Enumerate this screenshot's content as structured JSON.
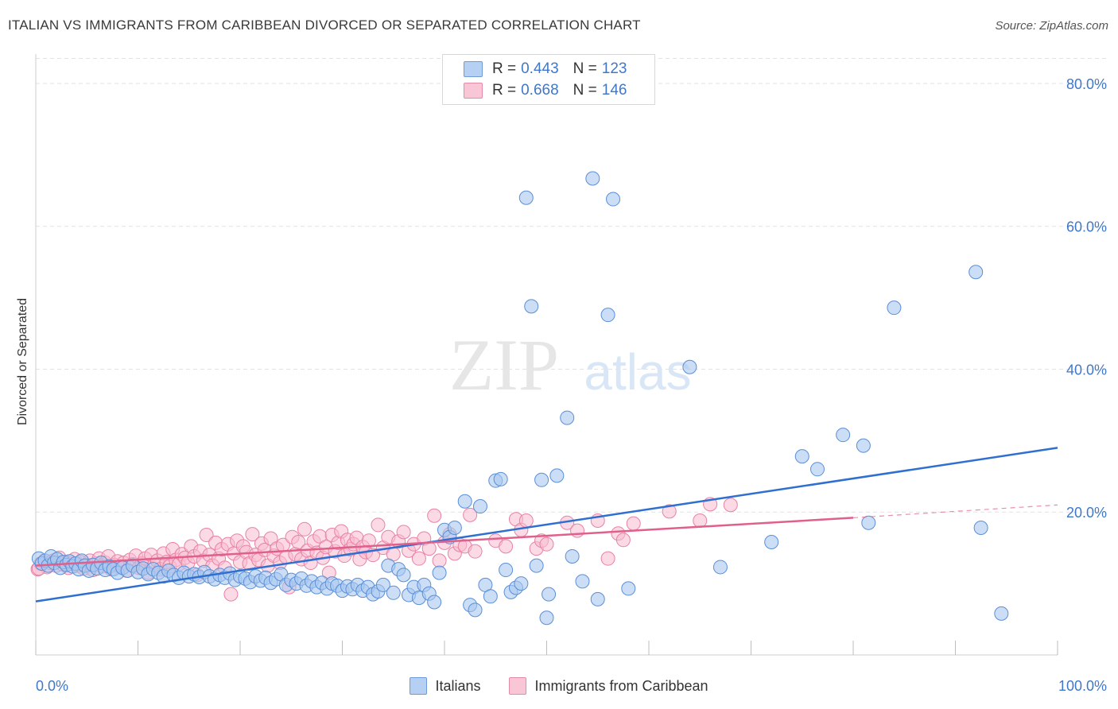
{
  "header": {
    "title": "ITALIAN VS IMMIGRANTS FROM CARIBBEAN DIVORCED OR SEPARATED CORRELATION CHART",
    "source": "Source: ZipAtlas.com"
  },
  "legend": {
    "rows": [
      {
        "r_label": "R =",
        "r_value": "0.443",
        "n_label": "N =",
        "n_value": "123"
      },
      {
        "r_label": "R =",
        "r_value": "0.668",
        "n_label": "N =",
        "n_value": "146"
      }
    ]
  },
  "bottom_legend": {
    "items": [
      "Italians",
      "Immigrants from Caribbean"
    ]
  },
  "watermark": {
    "part1": "ZIP",
    "part2": "atlas"
  },
  "colors": {
    "blue_fill": "#a8c8f0",
    "blue_stroke": "#5a8fd8",
    "blue_line": "#2f6fd0",
    "pink_fill": "#f8bcd0",
    "pink_stroke": "#e882a4",
    "pink_line": "#e0608c",
    "tick_text": "#3f78c8",
    "grid": "#e2e2e2"
  },
  "chart_data": {
    "type": "scatter",
    "title": "ITALIAN VS IMMIGRANTS FROM CARIBBEAN DIVORCED OR SEPARATED CORRELATION CHART",
    "xlabel": "",
    "ylabel": "Divorced or Separated",
    "xlim": [
      0,
      100
    ],
    "ylim": [
      0,
      85
    ],
    "x_tick_labels": [
      "0.0%",
      "100.0%"
    ],
    "y_ticks": [
      20,
      40,
      60,
      80
    ],
    "y_tick_labels": [
      "20.0%",
      "40.0%",
      "60.0%",
      "80.0%"
    ],
    "grid": true,
    "legend_placement": "top-center",
    "series": [
      {
        "name": "Italians",
        "color": "#5a8fd8",
        "trend": {
          "x": [
            0,
            100
          ],
          "y": [
            7.5,
            29
          ]
        },
        "points": [
          [
            0.3,
            13.5
          ],
          [
            0.6,
            12.8
          ],
          [
            0.9,
            13.2
          ],
          [
            1.2,
            12.5
          ],
          [
            1.5,
            13.8
          ],
          [
            1.8,
            12.9
          ],
          [
            2.1,
            13.4
          ],
          [
            2.4,
            12.2
          ],
          [
            2.7,
            13.0
          ],
          [
            3.0,
            12.6
          ],
          [
            3.3,
            13.1
          ],
          [
            3.6,
            12.4
          ],
          [
            3.9,
            12.8
          ],
          [
            4.2,
            12.0
          ],
          [
            4.5,
            13.2
          ],
          [
            4.8,
            12.5
          ],
          [
            5.2,
            11.8
          ],
          [
            5.6,
            12.6
          ],
          [
            6.0,
            12.1
          ],
          [
            6.4,
            12.9
          ],
          [
            6.8,
            11.9
          ],
          [
            7.2,
            12.4
          ],
          [
            7.6,
            12.0
          ],
          [
            8.0,
            11.5
          ],
          [
            8.5,
            12.2
          ],
          [
            9.0,
            11.8
          ],
          [
            9.5,
            12.5
          ],
          [
            10.0,
            11.6
          ],
          [
            10.5,
            12.1
          ],
          [
            11.0,
            11.3
          ],
          [
            11.5,
            12.0
          ],
          [
            12.0,
            11.5
          ],
          [
            12.5,
            11.0
          ],
          [
            13.0,
            11.8
          ],
          [
            13.5,
            11.2
          ],
          [
            14.0,
            10.8
          ],
          [
            14.5,
            11.5
          ],
          [
            15.0,
            11.0
          ],
          [
            15.5,
            11.3
          ],
          [
            16.0,
            10.9
          ],
          [
            16.5,
            11.6
          ],
          [
            17.0,
            11.0
          ],
          [
            17.5,
            10.6
          ],
          [
            18.0,
            11.2
          ],
          [
            18.5,
            10.8
          ],
          [
            19.0,
            11.4
          ],
          [
            19.5,
            10.5
          ],
          [
            20.0,
            11.0
          ],
          [
            20.5,
            10.7
          ],
          [
            21.0,
            10.2
          ],
          [
            21.5,
            11.0
          ],
          [
            22.0,
            10.4
          ],
          [
            22.5,
            10.8
          ],
          [
            23.0,
            10.1
          ],
          [
            23.5,
            10.6
          ],
          [
            24.0,
            11.3
          ],
          [
            24.5,
            9.8
          ],
          [
            25.0,
            10.5
          ],
          [
            25.5,
            10.0
          ],
          [
            26.0,
            10.7
          ],
          [
            26.5,
            9.7
          ],
          [
            27.0,
            10.3
          ],
          [
            27.5,
            9.5
          ],
          [
            28.0,
            10.1
          ],
          [
            28.5,
            9.3
          ],
          [
            29.0,
            10.0
          ],
          [
            29.5,
            9.7
          ],
          [
            30.0,
            9.0
          ],
          [
            30.5,
            9.6
          ],
          [
            31.0,
            9.2
          ],
          [
            31.5,
            9.8
          ],
          [
            32.0,
            9.0
          ],
          [
            32.5,
            9.5
          ],
          [
            33.0,
            8.5
          ],
          [
            33.5,
            8.9
          ],
          [
            34.0,
            9.8
          ],
          [
            34.5,
            12.5
          ],
          [
            35.0,
            8.7
          ],
          [
            35.5,
            12.0
          ],
          [
            36.0,
            11.2
          ],
          [
            36.5,
            8.4
          ],
          [
            37.0,
            9.5
          ],
          [
            37.5,
            8.0
          ],
          [
            38.0,
            9.8
          ],
          [
            38.5,
            8.6
          ],
          [
            39.0,
            7.4
          ],
          [
            39.5,
            11.5
          ],
          [
            40.0,
            17.5
          ],
          [
            40.5,
            16.5
          ],
          [
            41.0,
            17.8
          ],
          [
            42.0,
            21.5
          ],
          [
            42.5,
            7.0
          ],
          [
            43.0,
            6.3
          ],
          [
            43.5,
            20.8
          ],
          [
            44.0,
            9.8
          ],
          [
            44.5,
            8.2
          ],
          [
            45.0,
            24.4
          ],
          [
            45.5,
            24.6
          ],
          [
            46.0,
            11.9
          ],
          [
            46.5,
            8.8
          ],
          [
            47.0,
            9.4
          ],
          [
            47.5,
            10.0
          ],
          [
            48.0,
            64.0
          ],
          [
            48.5,
            48.8
          ],
          [
            49.0,
            12.5
          ],
          [
            49.5,
            24.5
          ],
          [
            50.0,
            5.2
          ],
          [
            50.2,
            8.5
          ],
          [
            51.0,
            25.1
          ],
          [
            52.0,
            33.2
          ],
          [
            52.5,
            13.8
          ],
          [
            53.5,
            10.3
          ],
          [
            54.5,
            66.7
          ],
          [
            55.0,
            7.8
          ],
          [
            56.0,
            47.6
          ],
          [
            56.5,
            63.8
          ],
          [
            58.0,
            9.3
          ],
          [
            64.0,
            40.3
          ],
          [
            67.0,
            12.3
          ],
          [
            72.0,
            15.8
          ],
          [
            75.0,
            27.8
          ],
          [
            76.5,
            26.0
          ],
          [
            79.0,
            30.8
          ],
          [
            81.0,
            29.3
          ],
          [
            81.5,
            18.5
          ],
          [
            84.0,
            48.6
          ],
          [
            92.0,
            53.6
          ],
          [
            92.5,
            17.8
          ],
          [
            94.5,
            5.8
          ]
        ]
      },
      {
        "name": "Immigrants from Caribbean",
        "color": "#e882a4",
        "trend": {
          "x": [
            0,
            80
          ],
          "y": [
            12.5,
            19.2
          ]
        },
        "trend_dashed": {
          "x": [
            80,
            100
          ],
          "y": [
            19.2,
            21.0
          ]
        },
        "points": [
          [
            0.2,
            12.0
          ],
          [
            0.5,
            12.8
          ],
          [
            0.8,
            13.0
          ],
          [
            1.1,
            12.3
          ],
          [
            1.4,
            12.9
          ],
          [
            1.7,
            13.2
          ],
          [
            2.0,
            12.5
          ],
          [
            2.3,
            13.6
          ],
          [
            2.6,
            12.7
          ],
          [
            2.9,
            13.0
          ],
          [
            3.2,
            12.2
          ],
          [
            3.5,
            12.8
          ],
          [
            3.8,
            13.4
          ],
          [
            4.1,
            12.5
          ],
          [
            4.4,
            13.0
          ],
          [
            4.7,
            12.1
          ],
          [
            5.0,
            12.6
          ],
          [
            5.3,
            13.2
          ],
          [
            5.6,
            11.9
          ],
          [
            5.9,
            12.8
          ],
          [
            6.2,
            13.5
          ],
          [
            6.5,
            12.4
          ],
          [
            6.8,
            12.9
          ],
          [
            7.1,
            13.8
          ],
          [
            7.4,
            12.0
          ],
          [
            7.7,
            12.6
          ],
          [
            8.0,
            13.1
          ],
          [
            8.3,
            12.4
          ],
          [
            8.6,
            12.9
          ],
          [
            8.9,
            11.8
          ],
          [
            9.2,
            13.3
          ],
          [
            9.5,
            12.7
          ],
          [
            9.8,
            13.9
          ],
          [
            10.1,
            12.2
          ],
          [
            10.4,
            12.8
          ],
          [
            10.7,
            13.5
          ],
          [
            11.0,
            11.5
          ],
          [
            11.3,
            14.0
          ],
          [
            11.6,
            12.6
          ],
          [
            11.9,
            13.2
          ],
          [
            12.2,
            12.0
          ],
          [
            12.5,
            14.2
          ],
          [
            12.8,
            13.0
          ],
          [
            13.1,
            12.4
          ],
          [
            13.4,
            14.8
          ],
          [
            13.7,
            13.3
          ],
          [
            14.0,
            12.7
          ],
          [
            14.3,
            14.1
          ],
          [
            14.6,
            13.6
          ],
          [
            14.9,
            12.9
          ],
          [
            15.2,
            15.2
          ],
          [
            15.5,
            13.8
          ],
          [
            15.8,
            11.2
          ],
          [
            16.1,
            14.5
          ],
          [
            16.4,
            13.2
          ],
          [
            16.7,
            16.8
          ],
          [
            17.0,
            14.0
          ],
          [
            17.3,
            12.5
          ],
          [
            17.6,
            15.7
          ],
          [
            17.9,
            13.5
          ],
          [
            18.2,
            14.8
          ],
          [
            18.5,
            12.2
          ],
          [
            18.8,
            15.5
          ],
          [
            19.1,
            8.5
          ],
          [
            19.4,
            14.2
          ],
          [
            19.7,
            16.0
          ],
          [
            20.0,
            13.0
          ],
          [
            20.3,
            15.2
          ],
          [
            20.6,
            14.4
          ],
          [
            20.9,
            12.8
          ],
          [
            21.2,
            16.9
          ],
          [
            21.5,
            14.0
          ],
          [
            21.8,
            13.3
          ],
          [
            22.1,
            15.6
          ],
          [
            22.4,
            14.7
          ],
          [
            22.7,
            12.5
          ],
          [
            23.0,
            16.3
          ],
          [
            23.3,
            13.9
          ],
          [
            23.6,
            14.9
          ],
          [
            23.9,
            12.9
          ],
          [
            24.2,
            15.4
          ],
          [
            24.5,
            13.7
          ],
          [
            24.8,
            9.5
          ],
          [
            25.1,
            16.5
          ],
          [
            25.4,
            14.1
          ],
          [
            25.7,
            15.8
          ],
          [
            26.0,
            13.4
          ],
          [
            26.3,
            17.6
          ],
          [
            26.6,
            14.6
          ],
          [
            26.9,
            12.9
          ],
          [
            27.2,
            15.9
          ],
          [
            27.5,
            14.3
          ],
          [
            27.8,
            16.6
          ],
          [
            28.1,
            13.6
          ],
          [
            28.4,
            15.1
          ],
          [
            28.7,
            11.5
          ],
          [
            29.0,
            16.8
          ],
          [
            29.3,
            14.5
          ],
          [
            29.6,
            15.7
          ],
          [
            29.9,
            17.3
          ],
          [
            30.2,
            13.9
          ],
          [
            30.5,
            16.1
          ],
          [
            30.8,
            14.8
          ],
          [
            31.1,
            15.5
          ],
          [
            31.4,
            16.4
          ],
          [
            31.7,
            13.4
          ],
          [
            32.0,
            15.1
          ],
          [
            32.3,
            14.4
          ],
          [
            32.6,
            16.0
          ],
          [
            33.0,
            14.0
          ],
          [
            33.5,
            18.2
          ],
          [
            34.0,
            15.0
          ],
          [
            34.5,
            16.5
          ],
          [
            35.0,
            14.1
          ],
          [
            35.5,
            15.9
          ],
          [
            36.0,
            17.2
          ],
          [
            36.5,
            14.6
          ],
          [
            37.0,
            15.5
          ],
          [
            37.5,
            13.5
          ],
          [
            38.0,
            16.3
          ],
          [
            38.5,
            14.9
          ],
          [
            39.0,
            19.5
          ],
          [
            39.5,
            13.2
          ],
          [
            40.0,
            15.7
          ],
          [
            40.5,
            16.9
          ],
          [
            41.0,
            14.2
          ],
          [
            41.5,
            15.4
          ],
          [
            42.0,
            15.2
          ],
          [
            42.5,
            19.6
          ],
          [
            43.0,
            14.5
          ],
          [
            45.0,
            16.0
          ],
          [
            46.0,
            15.2
          ],
          [
            47.0,
            19.0
          ],
          [
            47.5,
            17.5
          ],
          [
            48.0,
            18.8
          ],
          [
            49.0,
            14.9
          ],
          [
            49.5,
            16.0
          ],
          [
            50.0,
            15.5
          ],
          [
            52.0,
            18.5
          ],
          [
            53.0,
            17.4
          ],
          [
            55.0,
            18.8
          ],
          [
            56.0,
            13.5
          ],
          [
            57.0,
            17.0
          ],
          [
            57.5,
            16.1
          ],
          [
            58.5,
            18.4
          ],
          [
            62.0,
            20.1
          ],
          [
            65.0,
            18.8
          ],
          [
            66.0,
            21.1
          ],
          [
            68.0,
            21.0
          ],
          [
            0.3,
            12.1
          ]
        ]
      }
    ]
  }
}
